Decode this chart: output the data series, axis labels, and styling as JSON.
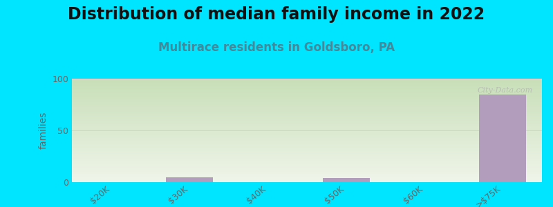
{
  "title": "Distribution of median family income in 2022",
  "subtitle": "Multirace residents in Goldsboro, PA",
  "categories": [
    "$20K",
    "$30K",
    "$40K",
    "$50K",
    "$60K",
    ">$75K"
  ],
  "values": [
    0,
    5,
    0,
    4,
    0,
    85
  ],
  "bar_color": "#b39dbd",
  "ylim": [
    0,
    100
  ],
  "yticks": [
    0,
    50,
    100
  ],
  "ylabel": "families",
  "background_color": "#00e5ff",
  "plot_bg_top_color": "#c8dfb8",
  "plot_bg_bottom_color": "#f0f5ea",
  "title_fontsize": 17,
  "subtitle_fontsize": 12,
  "title_color": "#111111",
  "subtitle_color": "#448899",
  "tick_color": "#666666",
  "grid_color": "#ddcccc",
  "watermark": "City-Data.com"
}
